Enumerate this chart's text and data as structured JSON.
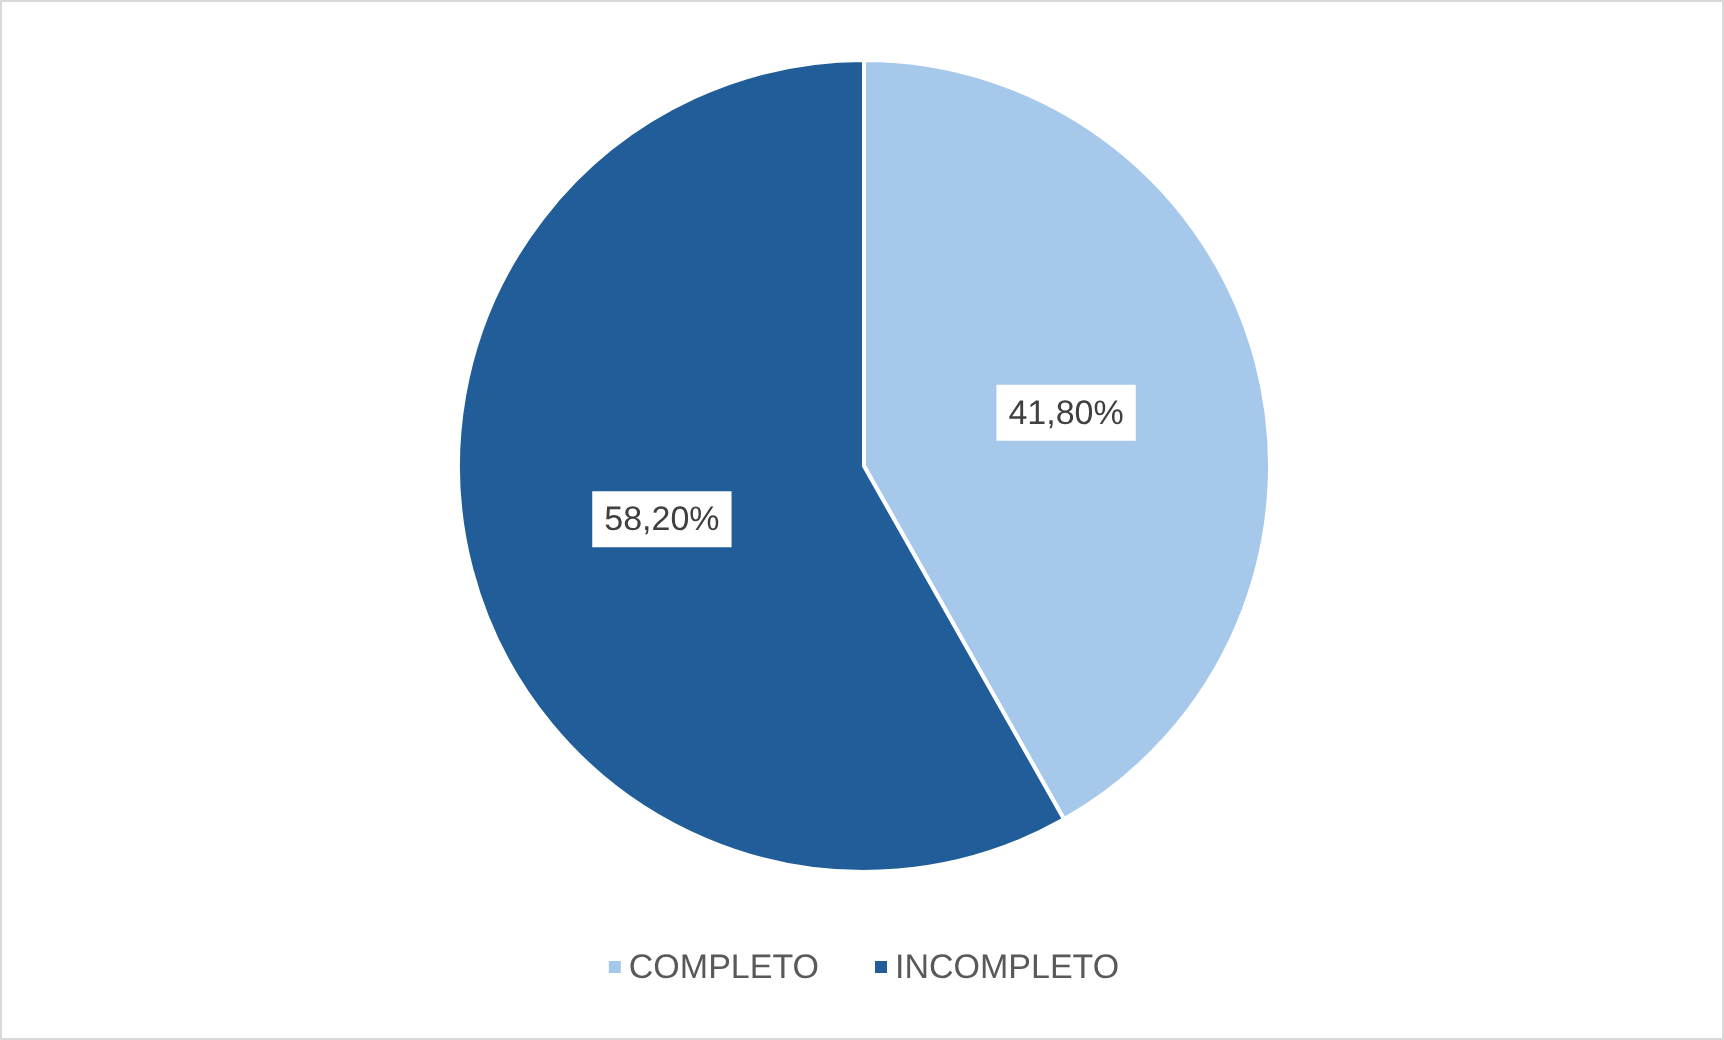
{
  "chart_data": {
    "type": "pie",
    "categories": [
      "COMPLETO",
      "INCOMPLETO"
    ],
    "values": [
      41.8,
      58.2
    ],
    "colors": [
      "#a6c8eb",
      "#215e99"
    ],
    "value_labels": [
      "41,80%",
      "58,20%"
    ],
    "legend": "bottom"
  }
}
